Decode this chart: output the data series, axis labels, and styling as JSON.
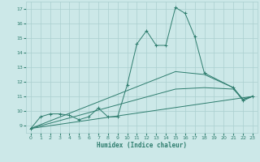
{
  "xlabel": "Humidex (Indice chaleur)",
  "xlim": [
    -0.5,
    23.5
  ],
  "ylim": [
    8.5,
    17.5
  ],
  "xticks": [
    0,
    1,
    2,
    3,
    4,
    5,
    6,
    7,
    8,
    9,
    10,
    11,
    12,
    13,
    14,
    15,
    16,
    17,
    18,
    19,
    20,
    21,
    22,
    23
  ],
  "yticks": [
    9,
    10,
    11,
    12,
    13,
    14,
    15,
    16,
    17
  ],
  "bg_color": "#cce8e8",
  "grid_color": "#aacfcf",
  "line_color": "#2e7d6e",
  "line1": {
    "x": [
      0,
      1,
      2,
      3,
      4,
      5,
      6,
      7,
      8,
      9,
      10,
      11,
      12,
      13,
      14,
      15,
      16,
      17,
      18,
      21,
      22,
      23
    ],
    "y": [
      8.8,
      9.6,
      9.8,
      9.8,
      9.7,
      9.4,
      9.6,
      10.2,
      9.6,
      9.6,
      11.8,
      14.6,
      15.5,
      14.5,
      14.5,
      17.1,
      16.7,
      15.1,
      12.6,
      11.6,
      10.7,
      11.0
    ]
  },
  "trend_lines": [
    {
      "x": [
        0,
        23
      ],
      "y": [
        8.8,
        11.0
      ]
    },
    {
      "x": [
        0,
        15,
        18,
        21,
        22,
        23
      ],
      "y": [
        8.8,
        11.5,
        11.6,
        11.5,
        10.8,
        11.0
      ]
    },
    {
      "x": [
        0,
        15,
        18,
        21,
        22,
        23
      ],
      "y": [
        8.8,
        12.7,
        12.5,
        11.6,
        10.8,
        11.0
      ]
    }
  ]
}
